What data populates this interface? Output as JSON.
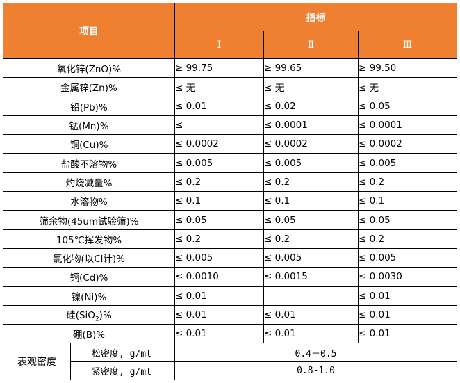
{
  "header": {
    "item": "项目",
    "indicator": "指标",
    "grades": [
      "Ⅰ",
      "Ⅱ",
      "Ⅲ"
    ]
  },
  "rows": [
    {
      "item": "氧化锌(ZnO)%",
      "values": [
        "≥ 99.75",
        "≥ 99.65",
        "≥ 99.50"
      ]
    },
    {
      "item": "金属锌(Zn)%",
      "values": [
        "≤ 无",
        "≤ 无",
        "≤ 无"
      ]
    },
    {
      "item": "铅(Pb)%",
      "values": [
        "≤ 0.01",
        "≤ 0.02",
        "≤ 0.05"
      ]
    },
    {
      "item": "锰(Mn)%",
      "values": [
        "≤",
        "≤ 0.0001",
        "≤ 0.0001"
      ]
    },
    {
      "item": "铜(Cu)%",
      "values": [
        "≤ 0.0002",
        "≤ 0.0002",
        "≤ 0.0002"
      ]
    },
    {
      "item": "盐酸不溶物%",
      "values": [
        "≤ 0.005",
        "≤ 0.005",
        "≤ 0.005"
      ]
    },
    {
      "item": "灼烧减量%",
      "values": [
        "≤ 0.2",
        "≤ 0.2",
        "≤ 0.2"
      ]
    },
    {
      "item": "水溶物%",
      "values": [
        "≤ 0.1",
        "≤ 0.1",
        "≤ 0.1"
      ]
    },
    {
      "item": "筛余物(45um试验筛)%",
      "values": [
        "≤ 0.05",
        "≤ 0.05",
        "≤ 0.05"
      ]
    },
    {
      "item": "105℃挥发物%",
      "values": [
        "≤ 0.2",
        "≤ 0.2",
        "≤ 0.2"
      ]
    },
    {
      "item": "氯化物(以Cl计)%",
      "values": [
        "≤ 0.005",
        "≤ 0.005",
        "≤ 0.005"
      ]
    },
    {
      "item": "镉(Cd)%",
      "values": [
        "≤ 0.0010",
        "≤ 0.0015",
        "≤ 0.0030"
      ]
    },
    {
      "item": "镍(Ni)%",
      "values": [
        "≤ 0.01",
        "",
        "≤ 0.01"
      ]
    },
    {
      "item_prefix": "硅(SiO",
      "item_sub": "2",
      "item_suffix": ")%",
      "values": [
        "≤ 0.01",
        "≤ 0.01",
        "≤ 0.01"
      ]
    },
    {
      "item": "硼(B)%",
      "values": [
        "≤ 0.01",
        "≤ 0.01",
        "≤ 0.01"
      ]
    }
  ],
  "density": {
    "label": "表观密度",
    "loose_label": "松密度, g/ml",
    "loose_value": "0.4－0.5",
    "tap_label": "紧密度, g/ml",
    "tap_value": "0.8-1.0"
  },
  "colors": {
    "header_bg": "#ef8032",
    "header_text": "#ffffff"
  }
}
